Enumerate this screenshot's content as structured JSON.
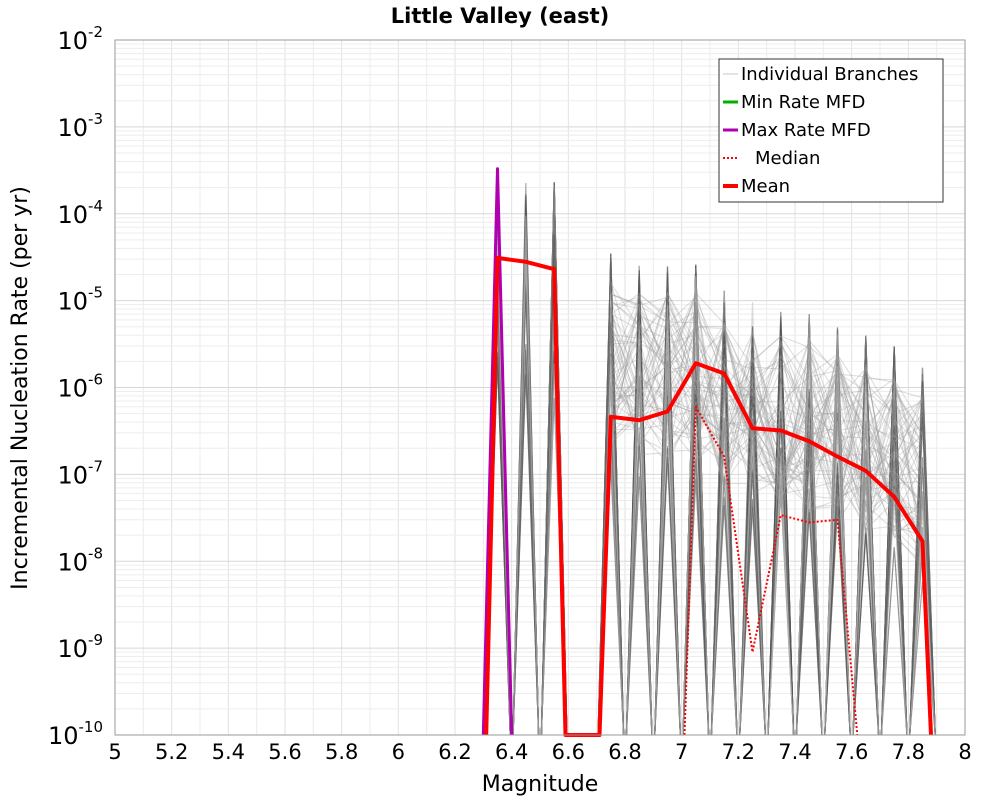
{
  "chart_data": {
    "type": "line",
    "title": "Little Valley (east)",
    "xlabel": "Magnitude",
    "ylabel": "Incremental Nucleation Rate (per yr)",
    "xlim": [
      5,
      8
    ],
    "ylim": [
      1e-10,
      0.01
    ],
    "yscale": "log",
    "grid": true,
    "legend_position": "top-right",
    "x_ticks": [
      "5",
      "5.2",
      "5.4",
      "5.6",
      "5.8",
      "6",
      "6.2",
      "6.4",
      "6.6",
      "6.8",
      "7",
      "7.2",
      "7.4",
      "7.6",
      "7.8",
      "8"
    ],
    "y_ticks": [
      {
        "base": "10",
        "exp": "-2"
      },
      {
        "base": "10",
        "exp": "-3"
      },
      {
        "base": "10",
        "exp": "-4"
      },
      {
        "base": "10",
        "exp": "-5"
      },
      {
        "base": "10",
        "exp": "-6"
      },
      {
        "base": "10",
        "exp": "-7"
      },
      {
        "base": "10",
        "exp": "-8"
      },
      {
        "base": "10",
        "exp": "-9"
      },
      {
        "base": "10",
        "exp": "-10"
      }
    ],
    "legend": [
      {
        "label": "Individual Branches",
        "color": "#c8c8c8",
        "style": "thin"
      },
      {
        "label": "Min Rate MFD",
        "color": "#00b000",
        "style": "solid"
      },
      {
        "label": "Max Rate MFD",
        "color": "#b000b0",
        "style": "solid"
      },
      {
        "label": "Median",
        "color": "#ff0000",
        "style": "dotted"
      },
      {
        "label": "Mean",
        "color": "#ff0000",
        "style": "thick"
      }
    ],
    "branch_envelope": {
      "name": "Individual Branches",
      "color": "#555555",
      "spikes": [
        {
          "x": 6.35,
          "ymax": 0.0003
        },
        {
          "x": 6.45,
          "ymax": 0.00023
        },
        {
          "x": 6.55,
          "ymax": 0.00023
        },
        {
          "x": 6.75,
          "ymax": 3.5e-05
        },
        {
          "x": 6.85,
          "ymax": 2.8e-05
        },
        {
          "x": 6.95,
          "ymax": 2.5e-05
        },
        {
          "x": 7.05,
          "ymax": 2.6e-05
        },
        {
          "x": 7.15,
          "ymax": 1.3e-05
        },
        {
          "x": 7.25,
          "ymax": 1e-05
        },
        {
          "x": 7.35,
          "ymax": 8e-06
        },
        {
          "x": 7.45,
          "ymax": 7e-06
        },
        {
          "x": 7.55,
          "ymax": 5e-06
        },
        {
          "x": 7.65,
          "ymax": 4e-06
        },
        {
          "x": 7.75,
          "ymax": 3e-06
        },
        {
          "x": 7.85,
          "ymax": 1.7e-06
        }
      ]
    },
    "series": [
      {
        "name": "Max Rate MFD",
        "color": "#b000b0",
        "x": [
          6.3,
          6.35,
          6.4
        ],
        "y": [
          1e-10,
          0.00033,
          1e-10
        ]
      },
      {
        "name": "Mean",
        "color": "#ff0000",
        "x": [
          6.31,
          6.35,
          6.45,
          6.55,
          6.59,
          6.71,
          6.75,
          6.85,
          6.95,
          7.05,
          7.15,
          7.25,
          7.35,
          7.45,
          7.55,
          7.65,
          7.75,
          7.85,
          7.88
        ],
        "y": [
          1e-10,
          3.1e-05,
          2.8e-05,
          2.3e-05,
          1e-10,
          1e-10,
          4.6e-07,
          4.2e-07,
          5.3e-07,
          1.9e-06,
          1.45e-06,
          3.4e-07,
          3.2e-07,
          2.4e-07,
          1.6e-07,
          1.1e-07,
          5.5e-08,
          1.7e-08,
          1e-10
        ]
      },
      {
        "name": "Median",
        "color": "#ff0000",
        "x": [
          7.01,
          7.05,
          7.15,
          7.25,
          7.35,
          7.45,
          7.55,
          7.62
        ],
        "y": [
          1e-10,
          6e-07,
          1.6e-07,
          9e-10,
          3.4e-08,
          2.8e-08,
          3e-08,
          1e-10
        ]
      }
    ]
  }
}
